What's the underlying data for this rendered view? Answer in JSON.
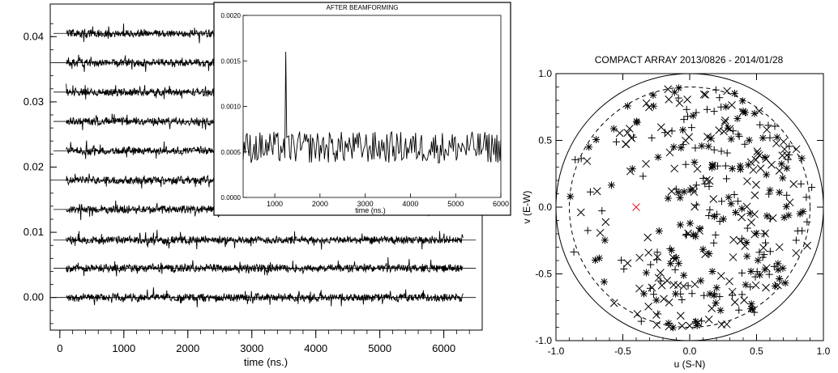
{
  "chart_data": [
    {
      "type": "line",
      "panel": "traces",
      "xlabel": "time (ns.)",
      "ylabel": "",
      "xlim": [
        -150,
        6600
      ],
      "ylim": [
        -0.005,
        0.045
      ],
      "x_ticks": [
        0,
        1000,
        2000,
        3000,
        4000,
        5000,
        6000
      ],
      "y_ticks": [
        0.0,
        0.01,
        0.02,
        0.03,
        0.04
      ],
      "y_tick_labels": [
        "0.00",
        "0.01",
        "0.02",
        "0.03",
        "0.04"
      ],
      "x_tick_labels": [
        "0",
        "1000",
        "2000",
        "3000",
        "4000",
        "5000",
        "6000"
      ],
      "trace_span": [
        100,
        6300
      ],
      "trace_offsets": [
        0.0,
        0.0045,
        0.0088,
        0.0135,
        0.018,
        0.0225,
        0.027,
        0.0315,
        0.036,
        0.0405
      ],
      "series": [
        {
          "values": [
            0.0
          ]
        },
        {
          "values": [
            0.0045
          ]
        },
        {
          "values": [
            0.0088
          ]
        },
        {
          "values": [
            0.0135
          ]
        },
        {
          "values": [
            0.018
          ]
        },
        {
          "values": [
            0.0225
          ]
        },
        {
          "values": [
            0.027
          ]
        },
        {
          "values": [
            0.0315
          ]
        },
        {
          "values": [
            0.036
          ]
        },
        {
          "values": [
            0.0405
          ]
        }
      ],
      "grid": false
    },
    {
      "type": "line",
      "panel": "inset",
      "title": "AFTER BEAMFORMING",
      "xlabel": "time (ns.)",
      "ylabel": "",
      "xlim": [
        300,
        6000
      ],
      "ylim": [
        0,
        0.002
      ],
      "x_ticks": [
        1000,
        2000,
        3000,
        4000,
        5000,
        6000
      ],
      "x_tick_labels": [
        "1000",
        "2000",
        "3000",
        "4000",
        "5000",
        "6000"
      ],
      "y_ticks": [
        0,
        0.0005,
        0.001,
        0.0015,
        0.002
      ],
      "y_tick_labels": [
        "0.0000",
        "0.0005",
        "0.0010",
        "0.0015",
        "0.0020"
      ],
      "baseline": 0.00055,
      "peak": {
        "x": 1250,
        "y": 0.0016
      },
      "grid": false
    },
    {
      "type": "scatter",
      "panel": "uv",
      "title": "COMPACT ARRAY  2013/0826 - 2014/01/28",
      "xlabel": "u  (S-N)",
      "ylabel": "v  (E-W)",
      "xlim": [
        -1.0,
        1.0
      ],
      "ylim": [
        -1.0,
        1.0
      ],
      "x_ticks": [
        -1.0,
        -0.5,
        0.0,
        0.5,
        1.0
      ],
      "x_tick_labels": [
        "-1.0",
        "-0.5",
        "0.0",
        "0.5",
        "1.0"
      ],
      "y_ticks": [
        -1.0,
        -0.5,
        0.0,
        0.5,
        1.0
      ],
      "y_tick_labels": [
        "-1.0",
        "-0.5",
        "0.0",
        "0.5",
        "1.0"
      ],
      "outer_circle_radius": 1.0,
      "dashed_circle_radius": 0.9,
      "marker_types": [
        "plus",
        "cross",
        "star"
      ],
      "highlight": {
        "x": -0.4,
        "y": 0.0,
        "marker": "cross",
        "color": "#e8141e"
      },
      "grid": false
    }
  ]
}
